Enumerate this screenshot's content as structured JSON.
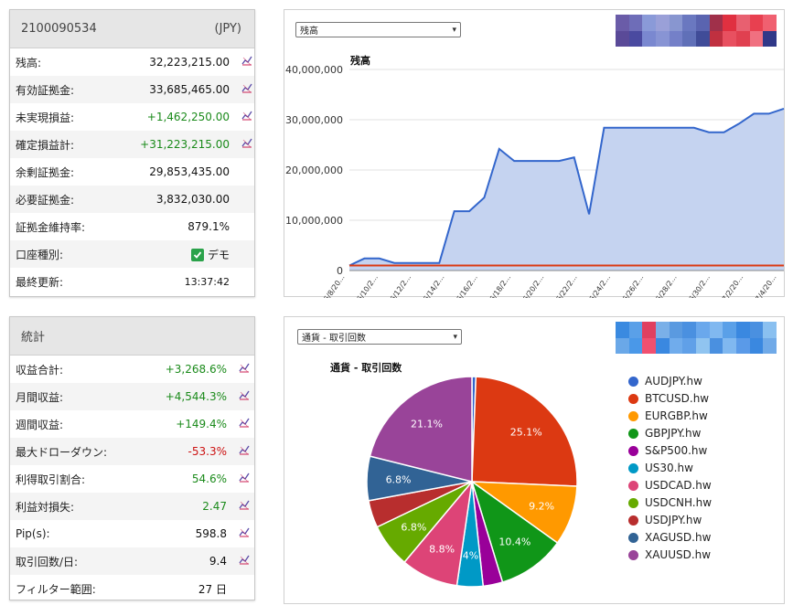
{
  "account": {
    "id": "2100090534",
    "currency": "(JPY)",
    "rows": [
      {
        "label": "残高:",
        "value": "32,223,215.00",
        "tone": "",
        "icon": true
      },
      {
        "label": "有効証拠金:",
        "value": "33,685,465.00",
        "tone": "",
        "icon": true
      },
      {
        "label": "未実現損益:",
        "value": "+1,462,250.00",
        "tone": "pos",
        "icon": true
      },
      {
        "label": "確定損益計:",
        "value": "+31,223,215.00",
        "tone": "pos",
        "icon": true
      },
      {
        "label": "余剰証拠金:",
        "value": "29,853,435.00",
        "tone": "",
        "icon": false
      },
      {
        "label": "必要証拠金:",
        "value": "3,832,030.00",
        "tone": "",
        "icon": false
      },
      {
        "label": "証拠金維持率:",
        "value": "879.1%",
        "tone": "",
        "icon": false
      },
      {
        "label": "口座種別:",
        "value": "デモ",
        "tone": "",
        "icon": false,
        "checkbox": true
      },
      {
        "label": "最終更新:",
        "value": "13:37:42",
        "tone": "",
        "icon": false,
        "small": true
      }
    ]
  },
  "stats": {
    "title": "統計",
    "rows": [
      {
        "label": "収益合計:",
        "value": "+3,268.6%",
        "tone": "pos",
        "icon": true
      },
      {
        "label": "月間収益:",
        "value": "+4,544.3%",
        "tone": "pos",
        "icon": true
      },
      {
        "label": "週間収益:",
        "value": "+149.4%",
        "tone": "pos",
        "icon": true
      },
      {
        "label": "最大ドローダウン:",
        "value": "-53.3%",
        "tone": "neg",
        "icon": true
      },
      {
        "label": "利得取引割合:",
        "value": "54.6%",
        "tone": "pos",
        "icon": true
      },
      {
        "label": "利益対損失:",
        "value": "2.47",
        "tone": "pos",
        "icon": true
      },
      {
        "label": "Pip(s):",
        "value": "598.8",
        "tone": "",
        "icon": true
      },
      {
        "label": "取引回数/日:",
        "value": "9.4",
        "tone": "",
        "icon": true
      },
      {
        "label": "フィルター範囲:",
        "value": "27 日",
        "tone": "",
        "icon": false
      }
    ]
  },
  "balance_chart": {
    "select_value": "残高",
    "chart_data": {
      "type": "area",
      "title": "残高",
      "yticks": [
        "40,000,000",
        "30,000,000",
        "20,000,000",
        "10,000,000",
        "0"
      ],
      "ylim": [
        0,
        40000000
      ],
      "xticks": [
        "6/8/20...",
        "6/10/2...",
        "6/12/2...",
        "6/14/2...",
        "6/16/2...",
        "6/18/2...",
        "6/20/2...",
        "6/22/2...",
        "6/24/2...",
        "6/26/2...",
        "6/28/2...",
        "6/30/2...",
        "7/2/20...",
        "7/4/20..."
      ],
      "series": [
        {
          "values": [
            1000000,
            2400000,
            2400000,
            1500000,
            1500000,
            1500000,
            1500000,
            11800000,
            11800000,
            14500000,
            24200000,
            21800000,
            21800000,
            21800000,
            21800000,
            22500000,
            11200000,
            28400000,
            28400000,
            28400000,
            28400000,
            28400000,
            28400000,
            28400000,
            27500000,
            27500000,
            29200000,
            31200000,
            31200000,
            32200000
          ],
          "color": "#3366cc"
        }
      ],
      "baseline": {
        "value": 1000000,
        "color": "#dc3912"
      }
    }
  },
  "pie_chart": {
    "select_value": "通貨 - 取引回数",
    "chart_data": {
      "type": "pie",
      "title": "通貨 - 取引回数",
      "slices": [
        {
          "name": "AUDJPY.hw",
          "value": 0.6,
          "label": "",
          "color": "#3366cc"
        },
        {
          "name": "BTCUSD.hw",
          "value": 25.1,
          "label": "25.1%",
          "color": "#dc3912"
        },
        {
          "name": "EURGBP.hw",
          "value": 9.2,
          "label": "9.2%",
          "color": "#ff9900"
        },
        {
          "name": "GBPJPY.hw",
          "value": 10.4,
          "label": "10.4%",
          "color": "#109618"
        },
        {
          "name": "S&P500.hw",
          "value": 3.0,
          "label": "",
          "color": "#990099"
        },
        {
          "name": "US30.hw",
          "value": 4.0,
          "label": "4%",
          "color": "#0099c6"
        },
        {
          "name": "USDCAD.hw",
          "value": 8.8,
          "label": "8.8%",
          "color": "#dd4477"
        },
        {
          "name": "USDCNH.hw",
          "value": 6.8,
          "label": "6.8%",
          "color": "#66aa00"
        },
        {
          "name": "USDJPY.hw",
          "value": 4.2,
          "label": "",
          "color": "#b82e2e"
        },
        {
          "name": "XAGUSD.hw",
          "value": 6.8,
          "label": "6.8%",
          "color": "#316395"
        },
        {
          "name": "XAUUSD.hw",
          "value": 21.1,
          "label": "21.1%",
          "color": "#994499"
        }
      ]
    }
  },
  "colors": {
    "mosaic_top": [
      "#6a5ca8",
      "#6e6db8",
      "#8a9ad8",
      "#9aa0d8",
      "#8896d0",
      "#6a78c0",
      "#5a64b0",
      "#a0304a",
      "#e03040",
      "#e86070",
      "#e84050",
      "#f06070",
      "#5a4a98",
      "#4a4aa0",
      "#7a88d0",
      "#8894d4",
      "#7480c8",
      "#6070b8",
      "#404c98",
      "#c03040",
      "#e85060",
      "#e04050",
      "#f07080",
      "#303888"
    ],
    "mosaic_bottom": [
      "#3a8ae0",
      "#5aa0e8",
      "#e04060",
      "#7ab0e8",
      "#5a9ae0",
      "#4a90e0",
      "#6aa8ec",
      "#80b8f0",
      "#5aa0e8",
      "#3a88e0",
      "#4a90e0",
      "#8ac0f0",
      "#6aa8e8",
      "#4a98e8",
      "#f05070",
      "#3a88e0",
      "#70acec",
      "#60a0e8",
      "#90c4f0",
      "#4a90e0",
      "#80b8f0",
      "#5a9ae8",
      "#3a88e0",
      "#70aae8"
    ]
  }
}
